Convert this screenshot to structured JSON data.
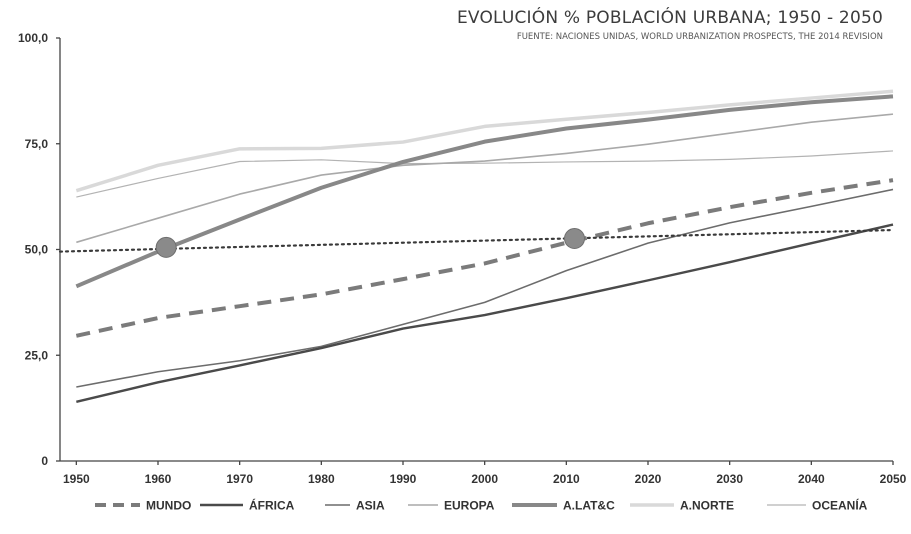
{
  "chart_data": {
    "type": "line",
    "title": "EVOLUCIÓN % POBLACIÓN URBANA; 1950 - 2050",
    "subtitle": "FUENTE: NACIONES UNIDAS, WORLD URBANIZATION PROSPECTS, THE 2014 REVISION",
    "x": [
      1950,
      1960,
      1970,
      1980,
      1990,
      2000,
      2010,
      2020,
      2030,
      2040,
      2050
    ],
    "xlim": [
      1948,
      2050
    ],
    "ylim": [
      0,
      100
    ],
    "y_ticks": [
      "0",
      "25,0",
      "50,0",
      "75,0",
      "100,0"
    ],
    "y_tick_values": [
      0,
      25,
      50,
      75,
      100
    ],
    "grid": false,
    "legend_position": "bottom",
    "series": [
      {
        "name": "MUNDO",
        "values": [
          29.6,
          33.8,
          36.6,
          39.4,
          43.0,
          46.7,
          51.6,
          56.2,
          60.0,
          63.4,
          66.4
        ],
        "color": "#7b7b7b",
        "style": "dashed"
      },
      {
        "name": "ÁFRICA",
        "values": [
          14.0,
          18.6,
          22.6,
          26.7,
          31.3,
          34.5,
          38.5,
          42.7,
          47.0,
          51.5,
          55.9
        ],
        "color": "#4a4a4a",
        "style": "solid-dark"
      },
      {
        "name": "ASIA",
        "values": [
          17.5,
          21.1,
          23.7,
          27.1,
          32.3,
          37.5,
          45.0,
          51.5,
          56.3,
          60.2,
          64.2
        ],
        "color": "#6c6c6c",
        "style": "solid"
      },
      {
        "name": "EUROPA",
        "values": [
          51.7,
          57.4,
          63.1,
          67.6,
          69.9,
          70.9,
          72.7,
          74.9,
          77.5,
          80.1,
          82.0
        ],
        "color": "#a9a9a9",
        "style": "solid"
      },
      {
        "name": "A.LAT&C",
        "values": [
          41.3,
          49.5,
          57.1,
          64.6,
          70.7,
          75.5,
          78.6,
          80.7,
          83.0,
          84.8,
          86.2
        ],
        "color": "#888888",
        "style": "thick"
      },
      {
        "name": "A.NORTE",
        "values": [
          63.9,
          69.9,
          73.8,
          73.9,
          75.4,
          79.1,
          80.8,
          82.4,
          84.2,
          85.8,
          87.4
        ],
        "color": "#d9d9d9",
        "style": "wide-light"
      },
      {
        "name": "OCEANÍA",
        "values": [
          62.4,
          66.8,
          70.8,
          71.2,
          70.3,
          70.4,
          70.7,
          70.9,
          71.3,
          72.1,
          73.3
        ],
        "color": "#b3b3b3",
        "style": "thin"
      }
    ],
    "annotations": [
      {
        "type": "dotted-line",
        "x": [
          1948,
          2050
        ],
        "y": [
          49.5,
          54.6
        ],
        "color": "#3a3a3a"
      },
      {
        "type": "marker",
        "x": 1961,
        "y": 50.5,
        "color": "#8a8a8a"
      },
      {
        "type": "marker",
        "x": 2011,
        "y": 52.6,
        "color": "#8a8a8a"
      }
    ]
  }
}
